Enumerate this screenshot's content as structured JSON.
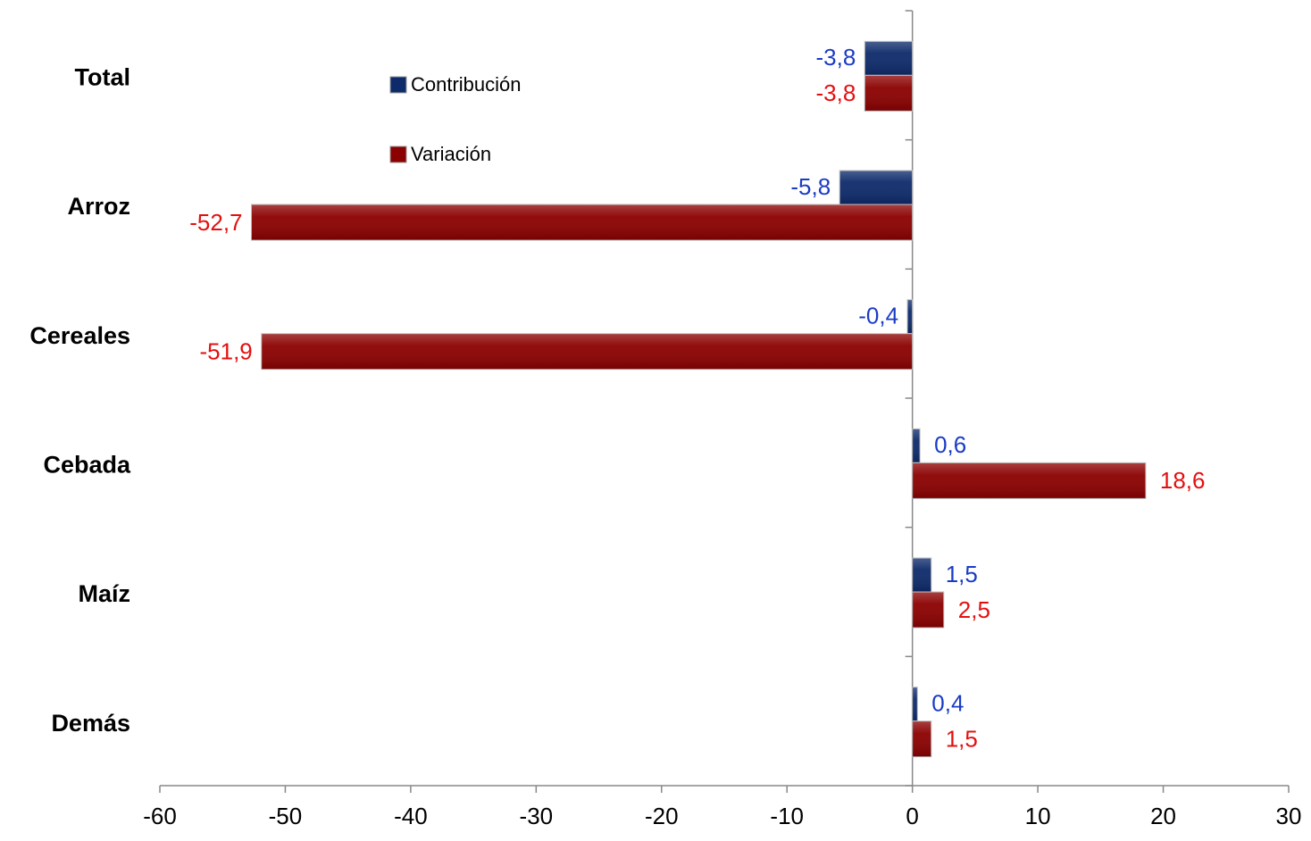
{
  "chart_data": {
    "type": "hbar",
    "categories": [
      "Total",
      "Arroz",
      "Cereales",
      "Cebada",
      "Maíz",
      "Demás"
    ],
    "series": [
      {
        "name": "Contribución",
        "color": "#0d2a6b",
        "label_color": "#1a3cc4",
        "values": [
          -3.8,
          -5.8,
          -0.4,
          0.6,
          1.5,
          0.4
        ],
        "value_labels": [
          "-3,8",
          "-5,8",
          "-0,4",
          "0,6",
          "1,5",
          "0,4"
        ]
      },
      {
        "name": "Variación",
        "color": "#8b0000",
        "label_color": "#e41010",
        "values": [
          -3.8,
          -52.7,
          -51.9,
          18.6,
          2.5,
          1.5
        ],
        "value_labels": [
          "-3,8",
          "-52,7",
          "-51,9",
          "18,6",
          "2,5",
          "1,5"
        ]
      }
    ],
    "xlim": [
      -60,
      30
    ],
    "xticks": [
      -60,
      -50,
      -40,
      -30,
      -20,
      -10,
      0,
      10,
      20,
      30
    ]
  }
}
